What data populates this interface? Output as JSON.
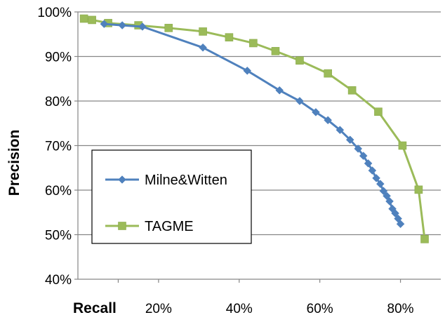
{
  "chart_data": {
    "type": "line",
    "title": "",
    "xlabel": "Recall",
    "ylabel": "Precision",
    "xlim": [
      0,
      90
    ],
    "ylim": [
      40,
      100
    ],
    "grid": "horizontal",
    "legend_position": "inside-left",
    "x_ticks": [
      {
        "value": 20,
        "label": "20%"
      },
      {
        "value": 40,
        "label": "40%"
      },
      {
        "value": 60,
        "label": "60%"
      },
      {
        "value": 80,
        "label": "80%"
      }
    ],
    "y_ticks": [
      {
        "value": 40,
        "label": "40%"
      },
      {
        "value": 50,
        "label": "50%"
      },
      {
        "value": 60,
        "label": "60%"
      },
      {
        "value": 70,
        "label": "70%"
      },
      {
        "value": 80,
        "label": "80%"
      },
      {
        "value": 90,
        "label": "90%"
      },
      {
        "value": 100,
        "label": "100%"
      }
    ],
    "series": [
      {
        "name": "Milne&Witten",
        "color": "#4F81BD",
        "marker": "diamond",
        "points": [
          [
            6.5,
            97.3
          ],
          [
            11,
            97.0
          ],
          [
            16,
            96.7
          ],
          [
            31,
            92.0
          ],
          [
            42,
            86.8
          ],
          [
            50,
            82.4
          ],
          [
            55,
            80.0
          ],
          [
            59,
            77.5
          ],
          [
            62,
            75.7
          ],
          [
            65,
            73.5
          ],
          [
            67.5,
            71.3
          ],
          [
            69.5,
            69.3
          ],
          [
            70.8,
            67.7
          ],
          [
            72,
            66.0
          ],
          [
            73,
            64.4
          ],
          [
            74,
            62.7
          ],
          [
            75,
            61.4
          ],
          [
            75.8,
            59.8
          ],
          [
            76.6,
            58.7
          ],
          [
            77.3,
            57.5
          ],
          [
            78,
            55.8
          ],
          [
            78.7,
            54.8
          ],
          [
            79.4,
            53.6
          ],
          [
            80,
            52.4
          ]
        ]
      },
      {
        "name": "TAGME",
        "color": "#9BBB59",
        "marker": "square",
        "points": [
          [
            1.5,
            98.5
          ],
          [
            3.5,
            98.2
          ],
          [
            7.5,
            97.5
          ],
          [
            15,
            97.0
          ],
          [
            22.5,
            96.4
          ],
          [
            31,
            95.6
          ],
          [
            37.5,
            94.3
          ],
          [
            43.5,
            93.0
          ],
          [
            49,
            91.2
          ],
          [
            55,
            89.1
          ],
          [
            62,
            86.2
          ],
          [
            68,
            82.4
          ],
          [
            74.5,
            77.6
          ],
          [
            80.5,
            70.0
          ],
          [
            84.5,
            60.1
          ],
          [
            86,
            49.0
          ]
        ]
      }
    ]
  }
}
